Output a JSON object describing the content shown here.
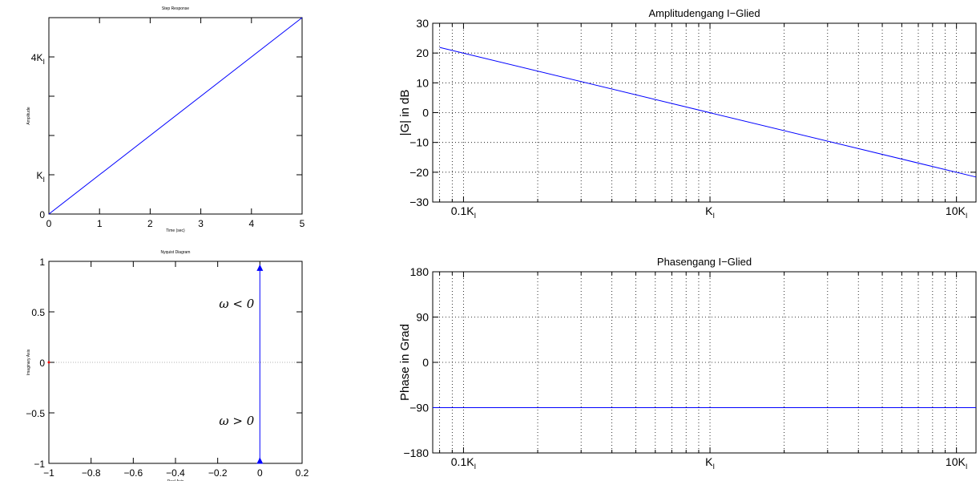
{
  "chart_data": [
    {
      "type": "line",
      "title": "Step Response",
      "xlabel": "Time (sec)",
      "ylabel": "Amplitude",
      "xlim": [
        0,
        5
      ],
      "ylim": [
        0,
        5
      ],
      "xticks": [
        0,
        1,
        2,
        3,
        4,
        5
      ],
      "xtick_labels": [
        "0",
        "1",
        "2",
        "3",
        "4",
        "5"
      ],
      "yticks": [
        0,
        1,
        4
      ],
      "ytick_labels": [
        {
          "main": "0",
          "sub": ""
        },
        {
          "main": "K",
          "sub": "I"
        },
        {
          "main": "4K",
          "sub": "I"
        }
      ],
      "yminor": [
        2,
        3
      ],
      "series": [
        {
          "x": [
            0,
            5
          ],
          "y": [
            0,
            5
          ]
        }
      ],
      "grid": false,
      "line_color": "#0000ff"
    },
    {
      "type": "line",
      "title": "Nyquist Diagram",
      "xlabel": "Real Axis",
      "ylabel": "Imaginary Axis",
      "xlim": [
        -1,
        0.2
      ],
      "ylim": [
        -1,
        1
      ],
      "xticks": [
        -1,
        -0.8,
        -0.6,
        -0.4,
        -0.2,
        0,
        0.2
      ],
      "xtick_labels": [
        "−1",
        "−0.8",
        "−0.6",
        "−0.4",
        "−0.2",
        "0",
        "0.2"
      ],
      "yticks": [
        -1,
        -0.5,
        0,
        0.5,
        1
      ],
      "ytick_labels": [
        "−1",
        "−0.5",
        "0",
        "0.5",
        "1"
      ],
      "series": [
        {
          "x": [
            0,
            0
          ],
          "y": [
            -0.98,
            0.93
          ]
        }
      ],
      "critical_point": [
        -1,
        0
      ],
      "annotations": [
        {
          "text": "ω < 0",
          "x": -0.11,
          "y": 0.58
        },
        {
          "text": "ω > 0",
          "x": -0.11,
          "y": -0.58
        }
      ],
      "line_color": "#0000ff"
    },
    {
      "type": "line",
      "title": "Amplitudengang I−Glied",
      "xlabel": "",
      "ylabel": "|G| in dB",
      "xscale": "log",
      "xlim": [
        0.075,
        12
      ],
      "ylim": [
        -30,
        30
      ],
      "xticks": [
        0.1,
        1,
        10
      ],
      "xtick_labels": [
        {
          "main": "0.1K",
          "sub": "I"
        },
        {
          "main": "K",
          "sub": "I"
        },
        {
          "main": "10K",
          "sub": "I"
        }
      ],
      "yticks": [
        -30,
        -20,
        -10,
        0,
        10,
        20,
        30
      ],
      "ytick_labels": [
        "−30",
        "−20",
        "−10",
        "0",
        "10",
        "20",
        "30"
      ],
      "series": [
        {
          "x": [
            0.08,
            12
          ],
          "y": [
            21.9,
            -21.6
          ]
        }
      ],
      "grid": true,
      "line_color": "#0000ff"
    },
    {
      "type": "line",
      "title": "Phasengang I−Glied",
      "xlabel": "",
      "ylabel": "Phase in Grad",
      "xscale": "log",
      "xlim": [
        0.075,
        12
      ],
      "ylim": [
        -180,
        180
      ],
      "xticks": [
        0.1,
        1,
        10
      ],
      "xtick_labels": [
        {
          "main": "0.1K",
          "sub": "I"
        },
        {
          "main": "K",
          "sub": "I"
        },
        {
          "main": "10K",
          "sub": "I"
        }
      ],
      "yticks": [
        -180,
        -90,
        0,
        90,
        180
      ],
      "ytick_labels": [
        "−180",
        "−90",
        "0",
        "90",
        "180"
      ],
      "series": [
        {
          "x": [
            0.075,
            12
          ],
          "y": [
            -90,
            -90
          ]
        }
      ],
      "grid": true,
      "line_color": "#0000ff"
    }
  ]
}
